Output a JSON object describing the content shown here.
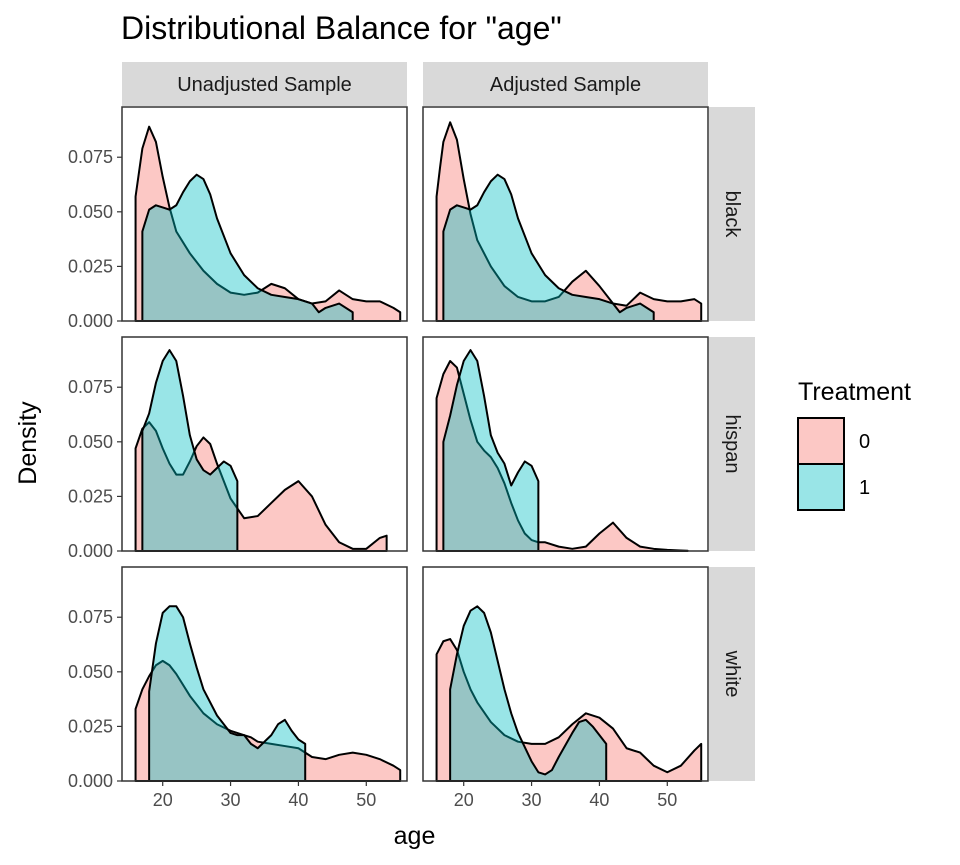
{
  "chart_data": {
    "type": "area",
    "title": "Distributional Balance for \"age\"",
    "xlabel": "age",
    "ylabel": "Density",
    "xlim": [
      14,
      56
    ],
    "ylim": [
      0,
      0.098
    ],
    "x_ticks": [
      20,
      30,
      40,
      50
    ],
    "y_ticks": [
      0.0,
      0.025,
      0.05,
      0.075
    ],
    "y_tick_labels": [
      "0.000",
      "0.025",
      "0.050",
      "0.075"
    ],
    "col_facets": [
      "Unadjusted Sample",
      "Adjusted Sample"
    ],
    "row_facets": [
      "black",
      "hispan",
      "white"
    ],
    "legend": {
      "title": "Treatment",
      "entries": [
        {
          "label": "0",
          "color": "#F8766D"
        },
        {
          "label": "1",
          "color": "#00BFC4"
        }
      ]
    },
    "series_colors": {
      "0": "#F8766D",
      "1": "#00BFC4"
    },
    "fill_opacity": 0.4,
    "panels": [
      {
        "col": "Unadjusted Sample",
        "row": "black",
        "series": [
          {
            "name": "0",
            "x": [
              16,
              16.5,
              17,
              18,
              19,
              20,
              21,
              22,
              24,
              26,
              28,
              30,
              32,
              34,
              36,
              38,
              40,
              42,
              44,
              46,
              48,
              50,
              52,
              54,
              55
            ],
            "y": [
              0.057,
              0.068,
              0.079,
              0.089,
              0.082,
              0.066,
              0.052,
              0.041,
              0.031,
              0.023,
              0.017,
              0.013,
              0.012,
              0.013,
              0.017,
              0.015,
              0.01,
              0.008,
              0.009,
              0.014,
              0.01,
              0.009,
              0.009,
              0.006,
              0.004
            ]
          },
          {
            "name": "1",
            "x": [
              17,
              18,
              19,
              20,
              21,
              22,
              23,
              24,
              25,
              26,
              27,
              28,
              30,
              32,
              34,
              36,
              38,
              40,
              42,
              43,
              44,
              46,
              48
            ],
            "y": [
              0.041,
              0.051,
              0.053,
              0.052,
              0.051,
              0.053,
              0.059,
              0.064,
              0.067,
              0.065,
              0.058,
              0.047,
              0.031,
              0.021,
              0.015,
              0.012,
              0.011,
              0.01,
              0.008,
              0.004,
              0.006,
              0.008,
              0.004
            ]
          }
        ]
      },
      {
        "col": "Adjusted Sample",
        "row": "black",
        "series": [
          {
            "name": "0",
            "x": [
              16,
              16.5,
              17,
              18,
              19,
              20,
              21,
              22,
              24,
              26,
              28,
              30,
              32,
              34,
              36,
              38,
              40,
              42,
              44,
              46,
              48,
              50,
              52,
              54,
              55
            ],
            "y": [
              0.057,
              0.07,
              0.082,
              0.091,
              0.083,
              0.065,
              0.049,
              0.037,
              0.025,
              0.016,
              0.011,
              0.009,
              0.009,
              0.011,
              0.018,
              0.023,
              0.016,
              0.008,
              0.007,
              0.013,
              0.01,
              0.009,
              0.009,
              0.01,
              0.008
            ]
          },
          {
            "name": "1",
            "x": [
              17,
              18,
              19,
              20,
              21,
              22,
              23,
              24,
              25,
              26,
              27,
              28,
              30,
              32,
              34,
              36,
              38,
              40,
              42,
              43,
              44,
              46,
              48
            ],
            "y": [
              0.041,
              0.051,
              0.053,
              0.052,
              0.051,
              0.053,
              0.059,
              0.064,
              0.067,
              0.065,
              0.058,
              0.047,
              0.031,
              0.021,
              0.015,
              0.012,
              0.011,
              0.01,
              0.008,
              0.004,
              0.006,
              0.008,
              0.004
            ]
          }
        ]
      },
      {
        "col": "Unadjusted Sample",
        "row": "hispan",
        "series": [
          {
            "name": "0",
            "x": [
              16,
              17,
              18,
              19,
              20,
              21,
              22,
              23,
              24,
              25,
              26,
              27,
              28,
              29,
              30,
              32,
              34,
              36,
              38,
              40,
              42,
              44,
              46,
              48,
              50,
              52,
              53
            ],
            "y": [
              0.047,
              0.056,
              0.059,
              0.055,
              0.047,
              0.04,
              0.035,
              0.035,
              0.041,
              0.048,
              0.052,
              0.049,
              0.04,
              0.032,
              0.024,
              0.015,
              0.016,
              0.022,
              0.028,
              0.032,
              0.025,
              0.012,
              0.004,
              0.001,
              0.001,
              0.006,
              0.007
            ]
          },
          {
            "name": "1",
            "x": [
              17,
              18,
              19,
              20,
              21,
              22,
              23,
              24,
              25,
              26,
              27,
              28,
              29,
              30,
              31
            ],
            "y": [
              0.055,
              0.063,
              0.077,
              0.087,
              0.092,
              0.087,
              0.071,
              0.053,
              0.042,
              0.037,
              0.035,
              0.038,
              0.041,
              0.039,
              0.032
            ]
          }
        ]
      },
      {
        "col": "Adjusted Sample",
        "row": "hispan",
        "series": [
          {
            "name": "0",
            "x": [
              16,
              17,
              18,
              19,
              20,
              21,
              22,
              23,
              24,
              25,
              26,
              27,
              28,
              29,
              30,
              31,
              32,
              34,
              36,
              38,
              40,
              42,
              44,
              46,
              48,
              50,
              52,
              53
            ],
            "y": [
              0.07,
              0.081,
              0.087,
              0.084,
              0.072,
              0.06,
              0.05,
              0.046,
              0.043,
              0.038,
              0.031,
              0.022,
              0.014,
              0.008,
              0.005,
              0.004,
              0.004,
              0.002,
              0.001,
              0.002,
              0.008,
              0.013,
              0.006,
              0.002,
              0.001,
              0.0005,
              0.0002,
              0.0001
            ]
          },
          {
            "name": "1",
            "x": [
              17,
              18,
              19,
              20,
              21,
              22,
              23,
              24,
              25,
              26,
              27,
              28,
              29,
              30,
              31
            ],
            "y": [
              0.05,
              0.062,
              0.076,
              0.087,
              0.092,
              0.087,
              0.071,
              0.053,
              0.045,
              0.04,
              0.03,
              0.036,
              0.041,
              0.039,
              0.032
            ]
          }
        ]
      },
      {
        "col": "Unadjusted Sample",
        "row": "white",
        "series": [
          {
            "name": "0",
            "x": [
              16,
              17,
              18,
              19,
              20,
              21,
              22,
              24,
              26,
              28,
              30,
              32,
              33,
              34,
              36,
              38,
              40,
              42,
              44,
              46,
              48,
              50,
              52,
              54,
              55
            ],
            "y": [
              0.033,
              0.042,
              0.048,
              0.053,
              0.055,
              0.053,
              0.049,
              0.039,
              0.031,
              0.026,
              0.023,
              0.021,
              0.02,
              0.018,
              0.017,
              0.016,
              0.015,
              0.011,
              0.01,
              0.012,
              0.013,
              0.012,
              0.01,
              0.007,
              0.005
            ]
          },
          {
            "name": "1",
            "x": [
              18,
              19,
              20,
              21,
              22,
              23,
              24,
              25,
              26,
              28,
              30,
              31,
              32,
              33,
              34,
              36,
              37,
              38,
              39,
              40,
              41
            ],
            "y": [
              0.041,
              0.063,
              0.077,
              0.08,
              0.08,
              0.075,
              0.063,
              0.052,
              0.042,
              0.03,
              0.022,
              0.021,
              0.021,
              0.017,
              0.015,
              0.021,
              0.026,
              0.028,
              0.023,
              0.019,
              0.017
            ]
          }
        ]
      },
      {
        "col": "Adjusted Sample",
        "row": "white",
        "series": [
          {
            "name": "0",
            "x": [
              16,
              17,
              18,
              19,
              20,
              21,
              22,
              24,
              26,
              28,
              30,
              32,
              34,
              36,
              38,
              40,
              42,
              44,
              46,
              48,
              50,
              52,
              54,
              55
            ],
            "y": [
              0.058,
              0.064,
              0.065,
              0.06,
              0.05,
              0.042,
              0.036,
              0.027,
              0.021,
              0.018,
              0.017,
              0.017,
              0.02,
              0.026,
              0.031,
              0.029,
              0.024,
              0.015,
              0.013,
              0.007,
              0.004,
              0.007,
              0.014,
              0.017
            ]
          },
          {
            "name": "1",
            "x": [
              18,
              19,
              20,
              21,
              22,
              23,
              24,
              25,
              26,
              27,
              28,
              30,
              31,
              32,
              33,
              34,
              36,
              37,
              38,
              39,
              40,
              41
            ],
            "y": [
              0.042,
              0.058,
              0.071,
              0.078,
              0.08,
              0.077,
              0.068,
              0.055,
              0.042,
              0.031,
              0.022,
              0.009,
              0.004,
              0.003,
              0.005,
              0.011,
              0.022,
              0.027,
              0.028,
              0.025,
              0.021,
              0.017
            ]
          }
        ]
      }
    ]
  }
}
